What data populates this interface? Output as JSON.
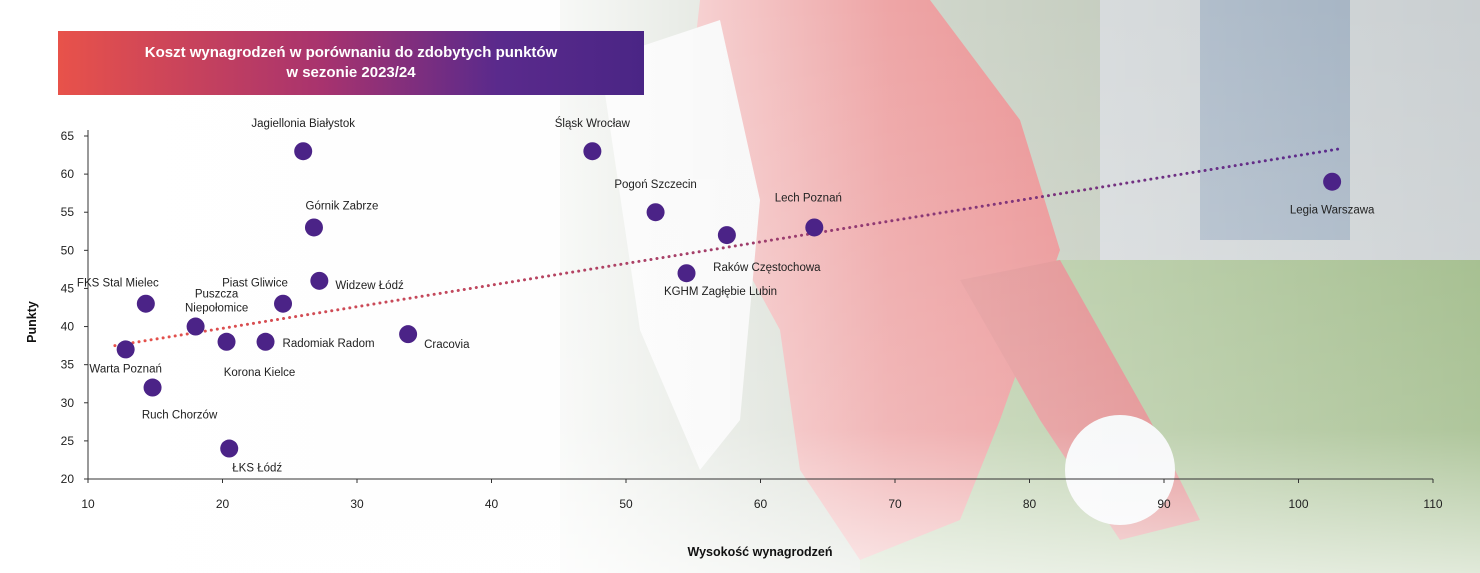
{
  "title": {
    "line1": "Koszt wynagrodzeń w porównaniu do zdobytych punktów",
    "line2": "w sezonie 2023/24"
  },
  "colors": {
    "point": "#4b2387",
    "trend_start": "#e8524a",
    "trend_end": "#5a2a8c",
    "banner_start": "#e8524a",
    "banner_end": "#4a2585"
  },
  "chart_data": {
    "type": "scatter",
    "title": "Koszt wynagrodzeń w porównaniu do zdobytych punktów w sezonie 2023/24",
    "xlabel": "Wysokość wynagrodzeń",
    "ylabel": "Punkty",
    "xlim": [
      10,
      110
    ],
    "ylim": [
      20,
      65
    ],
    "xticks": [
      10,
      20,
      30,
      40,
      50,
      60,
      70,
      80,
      90,
      100,
      110
    ],
    "yticks": [
      20,
      25,
      30,
      35,
      40,
      45,
      50,
      55,
      60,
      65
    ],
    "grid": false,
    "trendline": {
      "x": [
        12,
        103
      ],
      "y": [
        37.5,
        63.3
      ]
    },
    "points": [
      {
        "name": "Jagiellonia Białystok",
        "x": 26.0,
        "y": 63
      },
      {
        "name": "Śląsk Wrocław",
        "x": 47.5,
        "y": 63
      },
      {
        "name": "Legia Warszawa",
        "x": 102.5,
        "y": 59
      },
      {
        "name": "Pogoń Szczecin",
        "x": 52.2,
        "y": 55
      },
      {
        "name": "Górnik Zabrze",
        "x": 26.8,
        "y": 53
      },
      {
        "name": "Lech Poznań",
        "x": 64.0,
        "y": 53
      },
      {
        "name": "Raków Częstochowa",
        "x": 57.5,
        "y": 52
      },
      {
        "name": "KGHM Zagłębie Lubin",
        "x": 54.5,
        "y": 47
      },
      {
        "name": "Widzew Łódź",
        "x": 27.2,
        "y": 46
      },
      {
        "name": "FKS Stal Mielec",
        "x": 14.3,
        "y": 43
      },
      {
        "name": "Piast Gliwice",
        "x": 24.5,
        "y": 43
      },
      {
        "name": "Puszcza Niepołomice",
        "x": 18.0,
        "y": 40
      },
      {
        "name": "Cracovia",
        "x": 33.8,
        "y": 39
      },
      {
        "name": "Korona Kielce",
        "x": 20.3,
        "y": 38
      },
      {
        "name": "Radomiak Radom",
        "x": 23.2,
        "y": 38
      },
      {
        "name": "Warta Poznań",
        "x": 12.8,
        "y": 37
      },
      {
        "name": "Ruch Chorzów",
        "x": 14.8,
        "y": 32
      },
      {
        "name": "ŁKS Łódź",
        "x": 20.5,
        "y": 24
      }
    ]
  }
}
